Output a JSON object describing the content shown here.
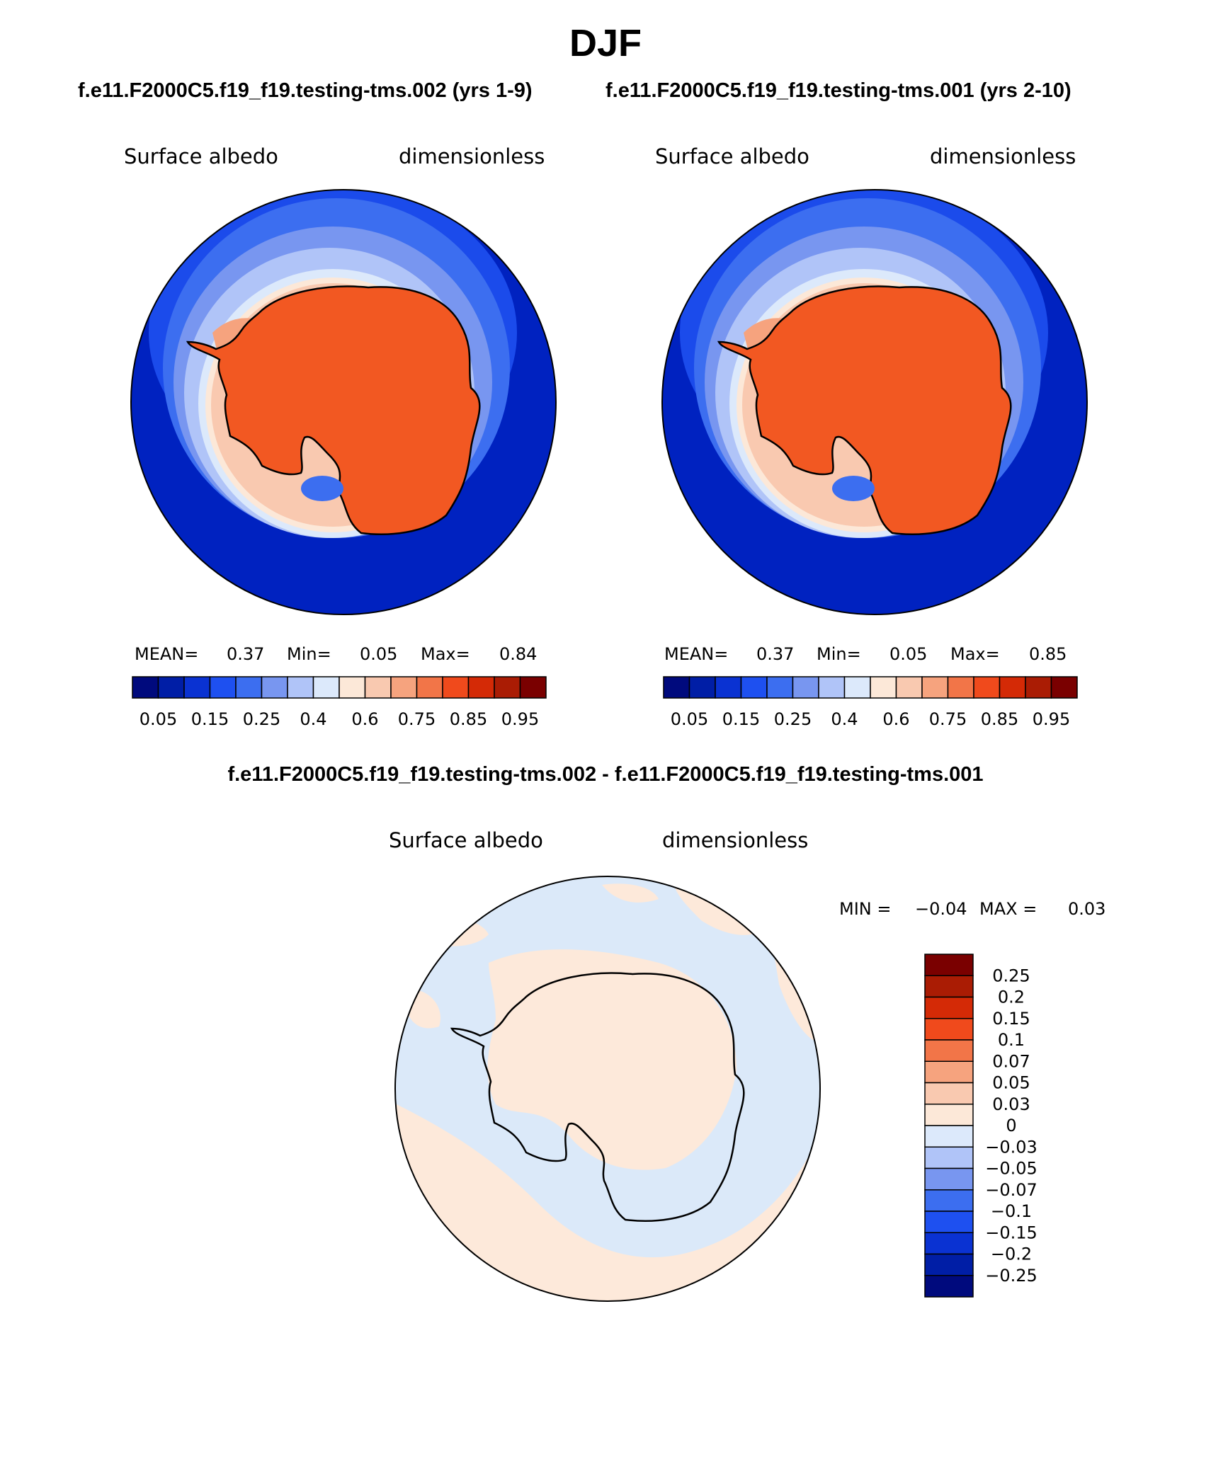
{
  "title": "DJF",
  "case_a": "f.e11.F2000C5.f19_f19.testing-tms.002 (yrs 1-9)",
  "case_b": "f.e11.F2000C5.f19_f19.testing-tms.001 (yrs 2-10)",
  "diff_title": "f.e11.F2000C5.f19_f19.testing-tms.002 - f.e11.F2000C5.f19_f19.testing-tms.001",
  "variable": "Surface albedo",
  "units": "dimensionless",
  "panel_a": {
    "mean_label": "MEAN=",
    "mean": "0.37",
    "min_label": "Min=",
    "min": "0.05",
    "max_label": "Max=",
    "max": "0.84"
  },
  "panel_b": {
    "mean_label": "MEAN=",
    "mean": "0.37",
    "min_label": "Min=",
    "min": "0.05",
    "max_label": "Max=",
    "max": "0.85"
  },
  "diff_stats": {
    "min_label": "MIN =",
    "min": "−0.04",
    "max_label": "MAX =",
    "max": "0.03"
  },
  "abs_colorbar": {
    "colors": [
      "#000a7d",
      "#001ea6",
      "#0a32d2",
      "#1e50f0",
      "#3c6ef0",
      "#7896f0",
      "#b0c4f8",
      "#dce9fb",
      "#fce8d8",
      "#f9c9b0",
      "#f6a37e",
      "#f27548",
      "#f04a1c",
      "#d42a06",
      "#aa1c04",
      "#7a0000"
    ],
    "tick_labels": [
      "0.05",
      "0.15",
      "0.25",
      "0.4",
      "0.6",
      "0.75",
      "0.85",
      "0.95"
    ]
  },
  "diff_colorbar": {
    "colors": [
      "#000a7d",
      "#001ea6",
      "#0a32d2",
      "#1e50f0",
      "#3c6ef0",
      "#7896f0",
      "#b0c4f8",
      "#dce9fb",
      "#fce8d8",
      "#f9c9b0",
      "#f6a37e",
      "#f27548",
      "#f04a1c",
      "#d42a06",
      "#aa1c04",
      "#7a0000"
    ],
    "tick_labels": [
      "0.25",
      "0.2",
      "0.15",
      "0.1",
      "0.07",
      "0.05",
      "0.03",
      "0",
      "−0.03",
      "−0.05",
      "−0.07",
      "−0.1",
      "−0.15",
      "−0.2",
      "−0.25"
    ]
  },
  "map_colors": {
    "ocean": "#0022c0",
    "land": "#f25822",
    "diff_neg": "#dbe9f9",
    "diff_pos": "#fde9da"
  }
}
